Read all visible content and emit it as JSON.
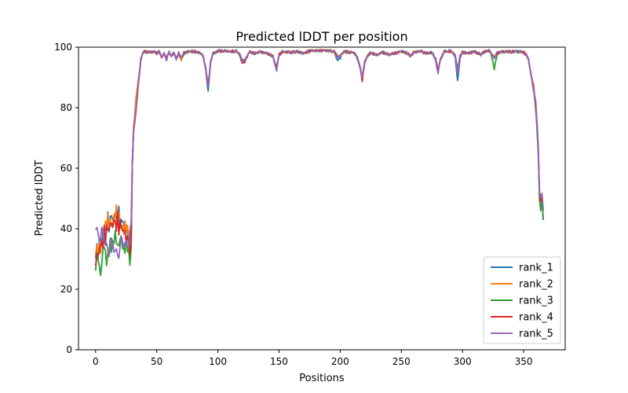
{
  "chart_data": {
    "type": "line",
    "title": "Predicted lDDT per position",
    "xlabel": "Positions",
    "ylabel": "Predicted lDDT",
    "xlim": [
      -14,
      384
    ],
    "ylim": [
      0,
      100
    ],
    "xticks": [
      0,
      50,
      100,
      150,
      200,
      250,
      300,
      350
    ],
    "yticks": [
      0,
      20,
      40,
      60,
      80,
      100
    ],
    "grid": false,
    "legend_position": "lower right",
    "length": 367,
    "base_profile": [
      [
        0,
        30
      ],
      [
        2,
        32
      ],
      [
        5,
        30
      ],
      [
        8,
        33
      ],
      [
        12,
        31
      ],
      [
        16,
        32
      ],
      [
        20,
        31
      ],
      [
        24,
        33
      ],
      [
        27,
        35
      ],
      [
        29,
        50
      ],
      [
        31,
        72
      ],
      [
        33,
        79
      ],
      [
        35,
        88
      ],
      [
        37,
        96
      ],
      [
        39,
        98.5
      ],
      [
        45,
        98.3
      ],
      [
        48,
        98.6
      ],
      [
        50,
        98.0
      ],
      [
        52,
        98.5
      ],
      [
        54,
        96.5
      ],
      [
        56,
        98.0
      ],
      [
        58,
        96.0
      ],
      [
        60,
        98.3
      ],
      [
        62,
        97.0
      ],
      [
        64,
        98.2
      ],
      [
        66,
        96.2
      ],
      [
        68,
        98.0
      ],
      [
        70,
        96.5
      ],
      [
        72,
        98.0
      ],
      [
        75,
        98.5
      ],
      [
        80,
        98.6
      ],
      [
        85,
        98.2
      ],
      [
        88,
        97.0
      ],
      [
        90,
        93.0
      ],
      [
        92,
        87.0
      ],
      [
        94,
        95.0
      ],
      [
        96,
        98.0
      ],
      [
        100,
        98.7
      ],
      [
        105,
        98.8
      ],
      [
        110,
        98.5
      ],
      [
        115,
        98.7
      ],
      [
        118,
        97.5
      ],
      [
        120,
        95.5
      ],
      [
        122,
        95.5
      ],
      [
        124,
        97.0
      ],
      [
        126,
        98.5
      ],
      [
        130,
        98.0
      ],
      [
        135,
        98.5
      ],
      [
        140,
        98.0
      ],
      [
        145,
        97.0
      ],
      [
        148,
        93.0
      ],
      [
        150,
        97.5
      ],
      [
        153,
        98.5
      ],
      [
        160,
        98.3
      ],
      [
        165,
        98.6
      ],
      [
        170,
        98.0
      ],
      [
        175,
        98.7
      ],
      [
        180,
        98.9
      ],
      [
        190,
        98.9
      ],
      [
        195,
        98.5
      ],
      [
        198,
        97.0
      ],
      [
        200,
        97.0
      ],
      [
        203,
        98.5
      ],
      [
        210,
        98.3
      ],
      [
        213,
        97.5
      ],
      [
        216,
        94.0
      ],
      [
        218,
        90.0
      ],
      [
        220,
        95.0
      ],
      [
        222,
        97.0
      ],
      [
        225,
        98.0
      ],
      [
        230,
        97.5
      ],
      [
        235,
        98.3
      ],
      [
        240,
        97.5
      ],
      [
        245,
        98.0
      ],
      [
        250,
        98.6
      ],
      [
        255,
        98.0
      ],
      [
        258,
        97.0
      ],
      [
        260,
        98.3
      ],
      [
        265,
        98.7
      ],
      [
        270,
        98.0
      ],
      [
        275,
        98.2
      ],
      [
        278,
        96.0
      ],
      [
        280,
        92.5
      ],
      [
        282,
        96.0
      ],
      [
        285,
        98.5
      ],
      [
        290,
        98.7
      ],
      [
        294,
        97.5
      ],
      [
        296,
        92.0
      ],
      [
        298,
        97.0
      ],
      [
        300,
        98.3
      ],
      [
        305,
        98.0
      ],
      [
        310,
        98.5
      ],
      [
        315,
        97.5
      ],
      [
        318,
        98.5
      ],
      [
        322,
        98.8
      ],
      [
        326,
        96.5
      ],
      [
        328,
        98.0
      ],
      [
        332,
        98.5
      ],
      [
        340,
        98.5
      ],
      [
        345,
        98.6
      ],
      [
        350,
        98.3
      ],
      [
        352,
        97.5
      ],
      [
        354,
        96.0
      ],
      [
        356,
        91.0
      ],
      [
        358,
        87.0
      ],
      [
        360,
        80.0
      ],
      [
        362,
        66.0
      ],
      [
        363,
        50.0
      ],
      [
        364,
        48.0
      ],
      [
        365,
        50.0
      ],
      [
        366,
        44.0
      ]
    ],
    "series": [
      {
        "name": "rank_1",
        "color": "#1f77b4",
        "start": 31,
        "peak": 44,
        "end": 43,
        "dips": [
          [
            92,
            -1.5
          ],
          [
            198,
            -1.5
          ],
          [
            296,
            -3.0
          ]
        ]
      },
      {
        "name": "rank_2",
        "color": "#ff7f0e",
        "start": 30,
        "peak": 44,
        "end": 44,
        "dips": [
          [
            33,
            4.0
          ],
          [
            70,
            -0.8
          ],
          [
            218,
            -0.5
          ]
        ]
      },
      {
        "name": "rank_3",
        "color": "#2ca02c",
        "start": 29,
        "peak": 36,
        "end": 43,
        "dips": [
          [
            4,
            -5.0
          ],
          [
            10,
            -4.5
          ],
          [
            326,
            -3.5
          ]
        ]
      },
      {
        "name": "rank_4",
        "color": "#d62728",
        "start": 29,
        "peak": 42,
        "end": 46,
        "dips": [
          [
            120,
            -1.0
          ],
          [
            218,
            -1.0
          ]
        ]
      },
      {
        "name": "rank_5",
        "color": "#9467bd",
        "start": 41,
        "peak": 33,
        "end": 47,
        "dips": [
          [
            280,
            -1.0
          ],
          [
            148,
            -1.0
          ]
        ]
      }
    ]
  }
}
